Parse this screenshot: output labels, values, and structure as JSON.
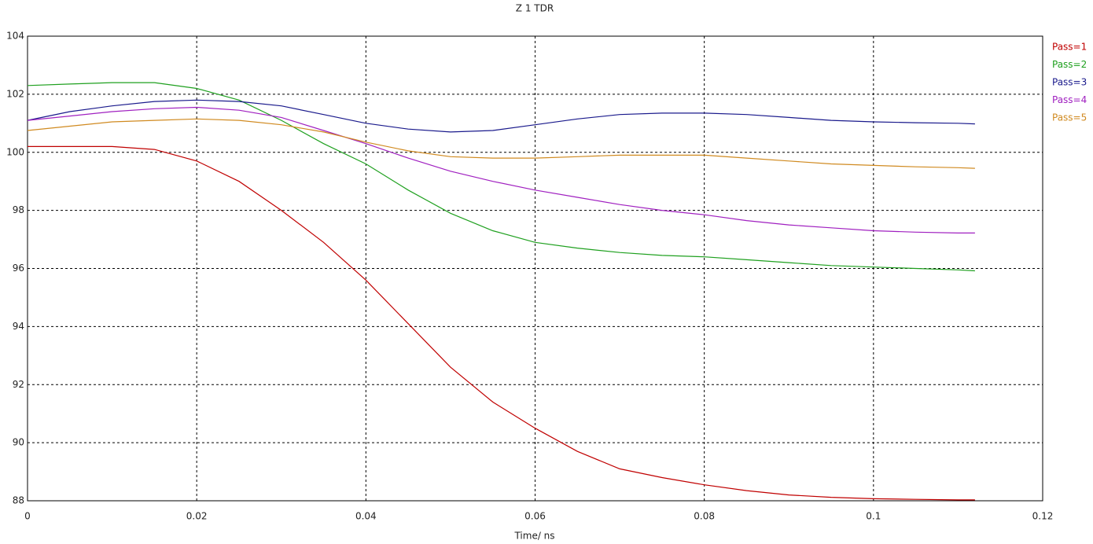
{
  "chart_data": {
    "type": "line",
    "title": "Z 1 TDR",
    "x_label": "Time/ ns",
    "x": [
      0,
      0.005,
      0.01,
      0.015,
      0.02,
      0.025,
      0.03,
      0.035,
      0.04,
      0.045,
      0.05,
      0.055,
      0.06,
      0.065,
      0.07,
      0.075,
      0.08,
      0.085,
      0.09,
      0.095,
      0.1,
      0.105,
      0.11,
      0.112
    ],
    "series": [
      {
        "name": "Pass=1",
        "color": "#c00000",
        "values": [
          100.2,
          100.2,
          100.2,
          100.1,
          99.7,
          99.0,
          98.0,
          96.9,
          95.6,
          94.1,
          92.6,
          91.4,
          90.5,
          89.7,
          89.1,
          88.8,
          88.55,
          88.35,
          88.2,
          88.12,
          88.07,
          88.05,
          88.03,
          88.03
        ]
      },
      {
        "name": "Pass=2",
        "color": "#1fa01f",
        "values": [
          102.3,
          102.35,
          102.4,
          102.4,
          102.2,
          101.8,
          101.1,
          100.3,
          99.6,
          98.7,
          97.9,
          97.3,
          96.9,
          96.7,
          96.55,
          96.45,
          96.4,
          96.3,
          96.2,
          96.1,
          96.05,
          96.0,
          95.95,
          95.92
        ]
      },
      {
        "name": "Pass=3",
        "color": "#1a1a8c",
        "values": [
          101.1,
          101.4,
          101.6,
          101.75,
          101.8,
          101.75,
          101.6,
          101.3,
          101.0,
          100.8,
          100.7,
          100.75,
          100.95,
          101.15,
          101.3,
          101.35,
          101.35,
          101.3,
          101.2,
          101.1,
          101.05,
          101.02,
          101.0,
          100.98
        ]
      },
      {
        "name": "Pass=4",
        "color": "#a020c0",
        "values": [
          101.1,
          101.25,
          101.4,
          101.5,
          101.55,
          101.45,
          101.2,
          100.75,
          100.3,
          99.8,
          99.35,
          99.0,
          98.7,
          98.45,
          98.2,
          98.0,
          97.85,
          97.65,
          97.5,
          97.4,
          97.3,
          97.25,
          97.22,
          97.22
        ]
      },
      {
        "name": "Pass=5",
        "color": "#d08a20",
        "values": [
          100.75,
          100.9,
          101.05,
          101.1,
          101.15,
          101.1,
          100.95,
          100.7,
          100.35,
          100.05,
          99.85,
          99.8,
          99.8,
          99.85,
          99.9,
          99.9,
          99.9,
          99.8,
          99.7,
          99.6,
          99.55,
          99.5,
          99.47,
          99.45
        ]
      }
    ],
    "xlim": [
      0,
      0.12
    ],
    "xticks": [
      0,
      0.02,
      0.04,
      0.06,
      0.08,
      0.1,
      0.12
    ],
    "ylim": [
      88,
      104
    ],
    "yticks": [
      88,
      90,
      92,
      94,
      96,
      98,
      100,
      102,
      104
    ],
    "grid": true,
    "legend": "right"
  }
}
